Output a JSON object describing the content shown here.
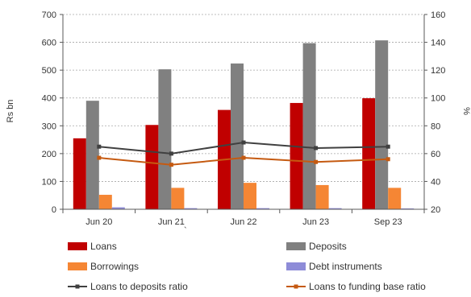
{
  "chart_data": {
    "type": "bar",
    "categories": [
      "Jun 20",
      "Jun 21",
      "Jun 22",
      "Jun 23",
      "Sep 23"
    ],
    "series": [
      {
        "name": "Loans",
        "kind": "bar",
        "axis": "left",
        "color": "#c00000",
        "values": [
          255,
          303,
          357,
          382,
          399
        ]
      },
      {
        "name": "Deposits",
        "kind": "bar",
        "axis": "left",
        "color": "#808080",
        "values": [
          390,
          503,
          524,
          597,
          607
        ]
      },
      {
        "name": "Borrowings",
        "kind": "bar",
        "axis": "left",
        "color": "#f58634",
        "values": [
          52,
          77,
          95,
          87,
          77
        ]
      },
      {
        "name": "Debt instruments",
        "kind": "bar",
        "axis": "left",
        "color": "#8e8cd8",
        "values": [
          7,
          4,
          4,
          4,
          3
        ]
      },
      {
        "name": "Loans to deposits ratio",
        "kind": "line",
        "axis": "right",
        "color": "#404040",
        "values": [
          65,
          60,
          68,
          64,
          65
        ]
      },
      {
        "name": "Loans to funding base ratio",
        "kind": "line",
        "axis": "right",
        "color": "#c55a11",
        "values": [
          57,
          52,
          57,
          54,
          56
        ]
      }
    ],
    "ylabel_left": "Rs bn",
    "ylabel_right": "%",
    "ylim_left": [
      0,
      700
    ],
    "ylim_right": [
      20,
      160
    ],
    "yticks_left": [
      "0",
      "100",
      "200",
      "300",
      "400",
      "500",
      "600",
      "700"
    ],
    "yticks_right": [
      "20",
      "40",
      "60",
      "80",
      "100",
      "120",
      "140",
      "160"
    ],
    "grid": "horizontal-dotted",
    "legend_position": "bottom",
    "annotation": "`"
  }
}
